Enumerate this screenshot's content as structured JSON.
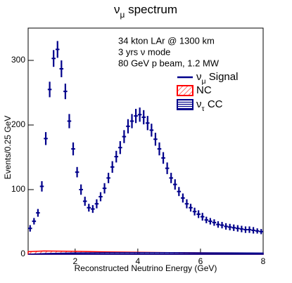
{
  "chart_data": {
    "type": "errorbar",
    "title": [
      "ν",
      "μ",
      " spectrum"
    ],
    "annotations": [
      "34 kton LAr @ 1300 km",
      "3 yrs ν mode",
      "80 GeV p beam, 1.2 MW"
    ],
    "xlabel": "Reconstructed Neutrino Energy (GeV)",
    "ylabel": "Events/0.25 GeV",
    "xlim": [
      0.5,
      8
    ],
    "ylim": [
      0,
      350
    ],
    "xticks": [
      2,
      4,
      6,
      8
    ],
    "yticks": [
      0,
      100,
      200,
      300
    ],
    "x": [
      0.5625,
      0.6875,
      0.8125,
      0.9375,
      1.0625,
      1.1875,
      1.3125,
      1.4375,
      1.5625,
      1.6875,
      1.8125,
      1.9375,
      2.0625,
      2.1875,
      2.3125,
      2.4375,
      2.5625,
      2.6875,
      2.8125,
      2.9375,
      3.0625,
      3.1875,
      3.3125,
      3.4375,
      3.5625,
      3.6875,
      3.8125,
      3.9375,
      4.0625,
      4.1875,
      4.3125,
      4.4375,
      4.5625,
      4.6875,
      4.8125,
      4.9375,
      5.0625,
      5.1875,
      5.3125,
      5.4375,
      5.5625,
      5.6875,
      5.8125,
      5.9375,
      6.0625,
      6.1875,
      6.3125,
      6.4375,
      6.5625,
      6.6875,
      6.8125,
      6.9375,
      7.0625,
      7.1875,
      7.3125,
      7.4375,
      7.5625,
      7.6875,
      7.8125,
      7.9375
    ],
    "series": [
      {
        "name": [
          "ν",
          "μ",
          " Signal"
        ],
        "color": "#00008b",
        "values": [
          40,
          51,
          64,
          105,
          179,
          255,
          303,
          317,
          287,
          252,
          206,
          163,
          127,
          100,
          82,
          72,
          70,
          78,
          89,
          102,
          118,
          135,
          151,
          165,
          182,
          198,
          206,
          214,
          216,
          212,
          203,
          192,
          178,
          163,
          149,
          133,
          118,
          108,
          97,
          87,
          78,
          72,
          66,
          62,
          58,
          53,
          51,
          49,
          46,
          45,
          43,
          42,
          41,
          40,
          39,
          38,
          38,
          37,
          36,
          35
        ],
        "errors": [
          5,
          5,
          6,
          8,
          10,
          12,
          13,
          13,
          13,
          12,
          11,
          10,
          8,
          8,
          7,
          6,
          6,
          7,
          7,
          8,
          8,
          9,
          9,
          10,
          10,
          11,
          11,
          11,
          11,
          11,
          11,
          10,
          10,
          10,
          9,
          9,
          8,
          8,
          7,
          7,
          7,
          6,
          6,
          6,
          6,
          5,
          5,
          5,
          5,
          5,
          5,
          5,
          5,
          5,
          5,
          5,
          5,
          5,
          4,
          4
        ]
      },
      {
        "name": [
          "NC"
        ],
        "color": "#ff0000",
        "x": [
          0.5,
          1,
          2,
          3,
          4,
          5,
          6,
          7,
          8
        ],
        "values": [
          4,
          5,
          4.5,
          3.5,
          3,
          2.5,
          2,
          1.5,
          1
        ]
      },
      {
        "name": [
          "ν",
          "τ",
          " CC"
        ],
        "color": "#00008b",
        "x": [
          0.5,
          1,
          2,
          3,
          4,
          5,
          6,
          7,
          8
        ],
        "values": [
          0,
          1,
          2,
          2.5,
          2.5,
          2.5,
          2.2,
          2,
          1.8
        ]
      }
    ]
  }
}
